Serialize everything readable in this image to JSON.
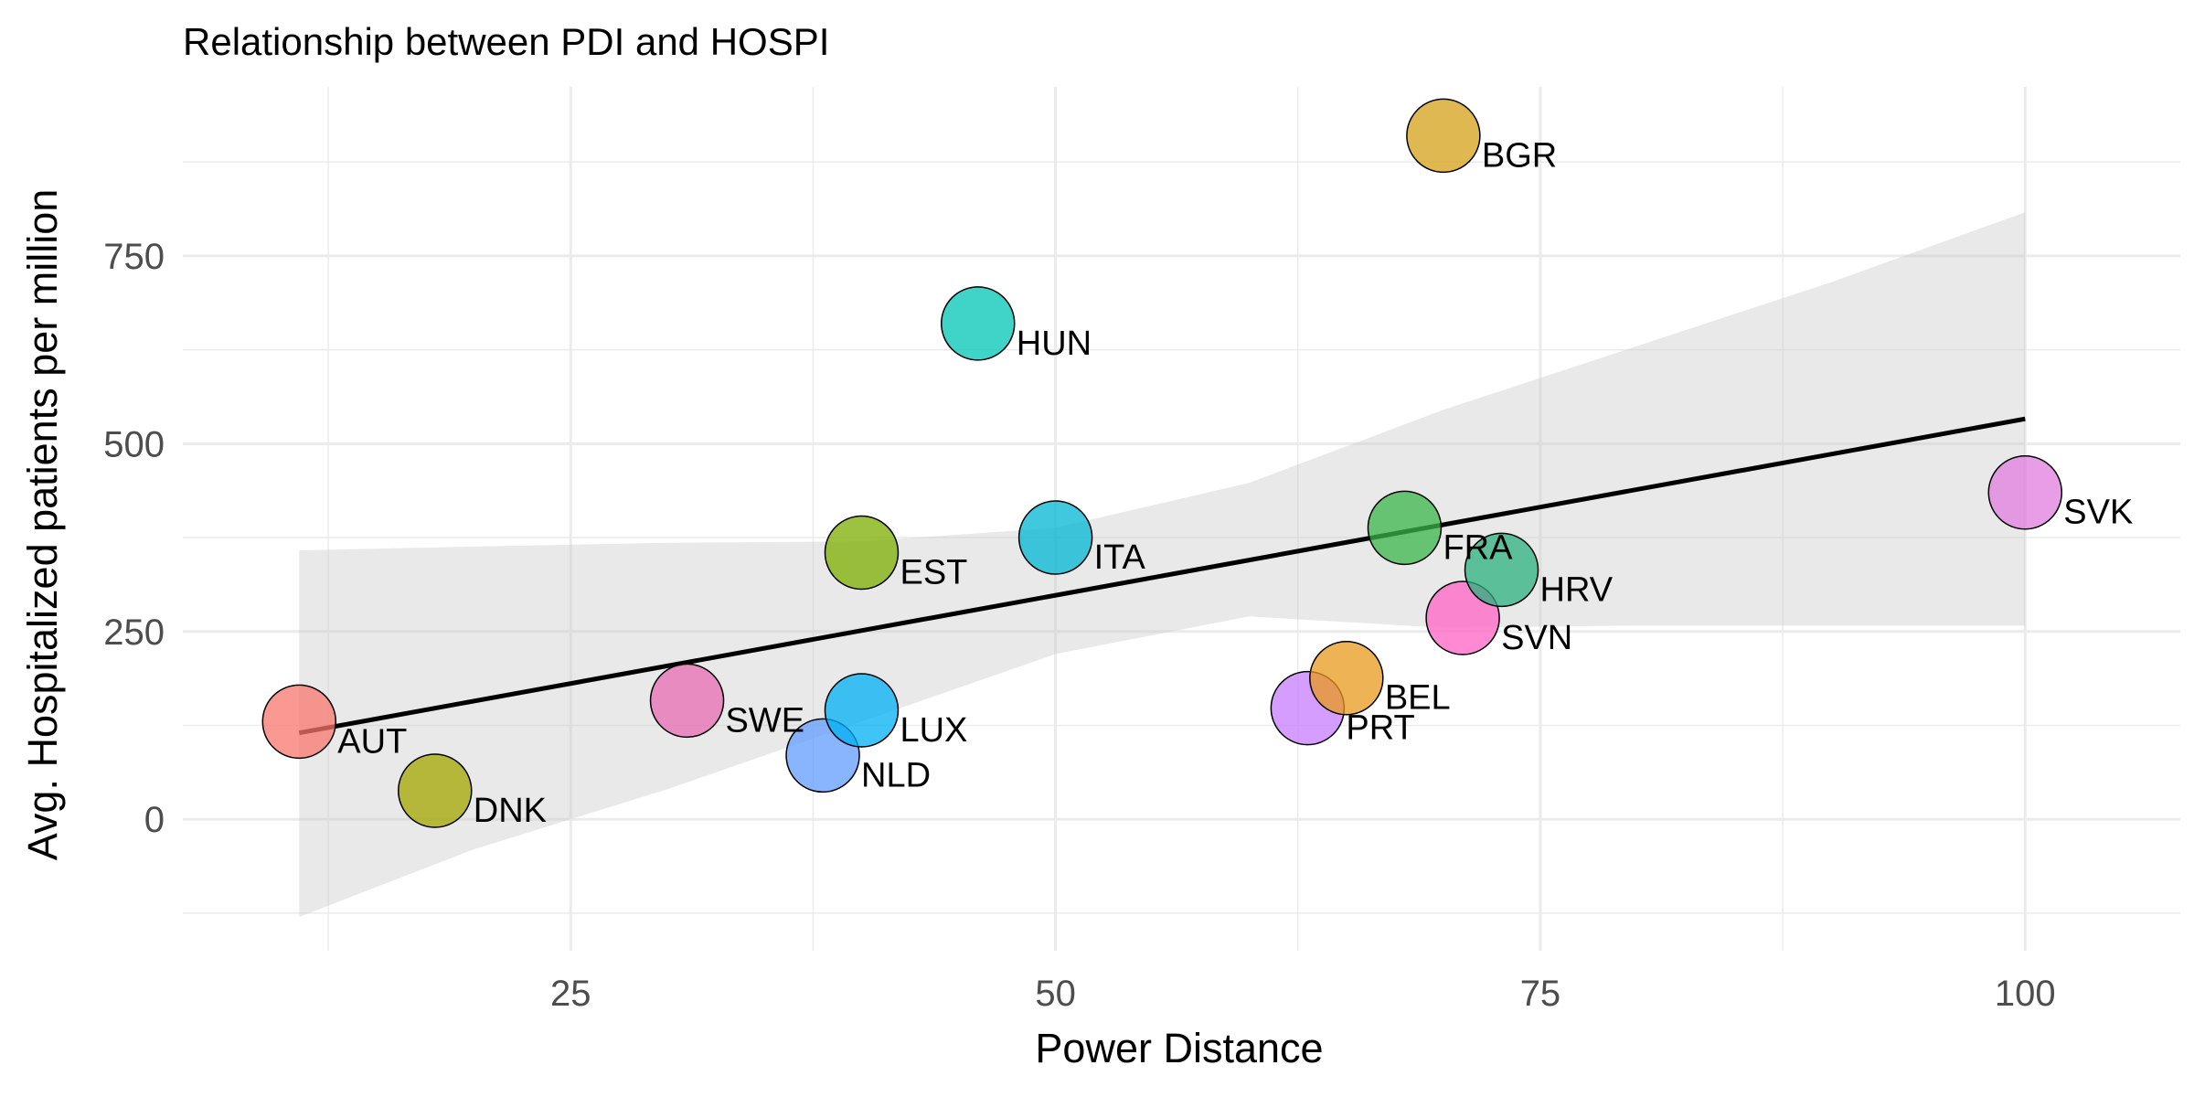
{
  "chart_data": {
    "type": "scatter",
    "title": "Relationship between PDI and HOSPI",
    "xlabel": "Power Distance",
    "ylabel": "Avg. Hospitalized patients per million",
    "xlim": [
      5,
      108
    ],
    "ylim": [
      -175,
      975
    ],
    "x_major_ticks": [
      25,
      50,
      75,
      100
    ],
    "y_major_ticks": [
      0,
      250,
      500,
      750
    ],
    "x_minor_ticks": [
      12.5,
      37.5,
      62.5,
      87.5
    ],
    "y_minor_ticks": [
      -125,
      125,
      375,
      625,
      875
    ],
    "grid": true,
    "legend": "none",
    "points": [
      {
        "label": "AUT",
        "x": 11,
        "y": 130,
        "color": "#f8766d"
      },
      {
        "label": "DNK",
        "x": 18,
        "y": 38,
        "color": "#a3a500"
      },
      {
        "label": "SWE",
        "x": 31,
        "y": 158,
        "color": "#e76bb2"
      },
      {
        "label": "NLD",
        "x": 38,
        "y": 85,
        "color": "#619cff"
      },
      {
        "label": "LUX",
        "x": 40,
        "y": 145,
        "color": "#00b0f6"
      },
      {
        "label": "EST",
        "x": 40,
        "y": 355,
        "color": "#7cae00"
      },
      {
        "label": "HUN",
        "x": 46,
        "y": 660,
        "color": "#00c5b5"
      },
      {
        "label": "ITA",
        "x": 50,
        "y": 375,
        "color": "#00b6d3"
      },
      {
        "label": "PRT",
        "x": 63,
        "y": 148,
        "color": "#c77cff"
      },
      {
        "label": "BEL",
        "x": 65,
        "y": 188,
        "color": "#e89a1c"
      },
      {
        "label": "FRA",
        "x": 68,
        "y": 388,
        "color": "#39b54a"
      },
      {
        "label": "BGR",
        "x": 70,
        "y": 910,
        "color": "#d4a017"
      },
      {
        "label": "SVN",
        "x": 71,
        "y": 268,
        "color": "#ff61c3"
      },
      {
        "label": "HRV",
        "x": 73,
        "y": 332,
        "color": "#2bb07f"
      },
      {
        "label": "SVK",
        "x": 100,
        "y": 435,
        "color": "#e07ddf"
      }
    ],
    "trend": {
      "type": "linear",
      "x": [
        11,
        100
      ],
      "y": [
        115,
        533
      ],
      "ci_x": [
        11,
        20,
        30,
        40,
        50,
        60,
        70,
        80,
        90,
        100
      ],
      "ci_lower": [
        -130,
        -40,
        40,
        130,
        220,
        270,
        255,
        258,
        258,
        258
      ],
      "ci_upper": [
        358,
        363,
        368,
        370,
        388,
        448,
        545,
        630,
        715,
        808
      ]
    }
  }
}
